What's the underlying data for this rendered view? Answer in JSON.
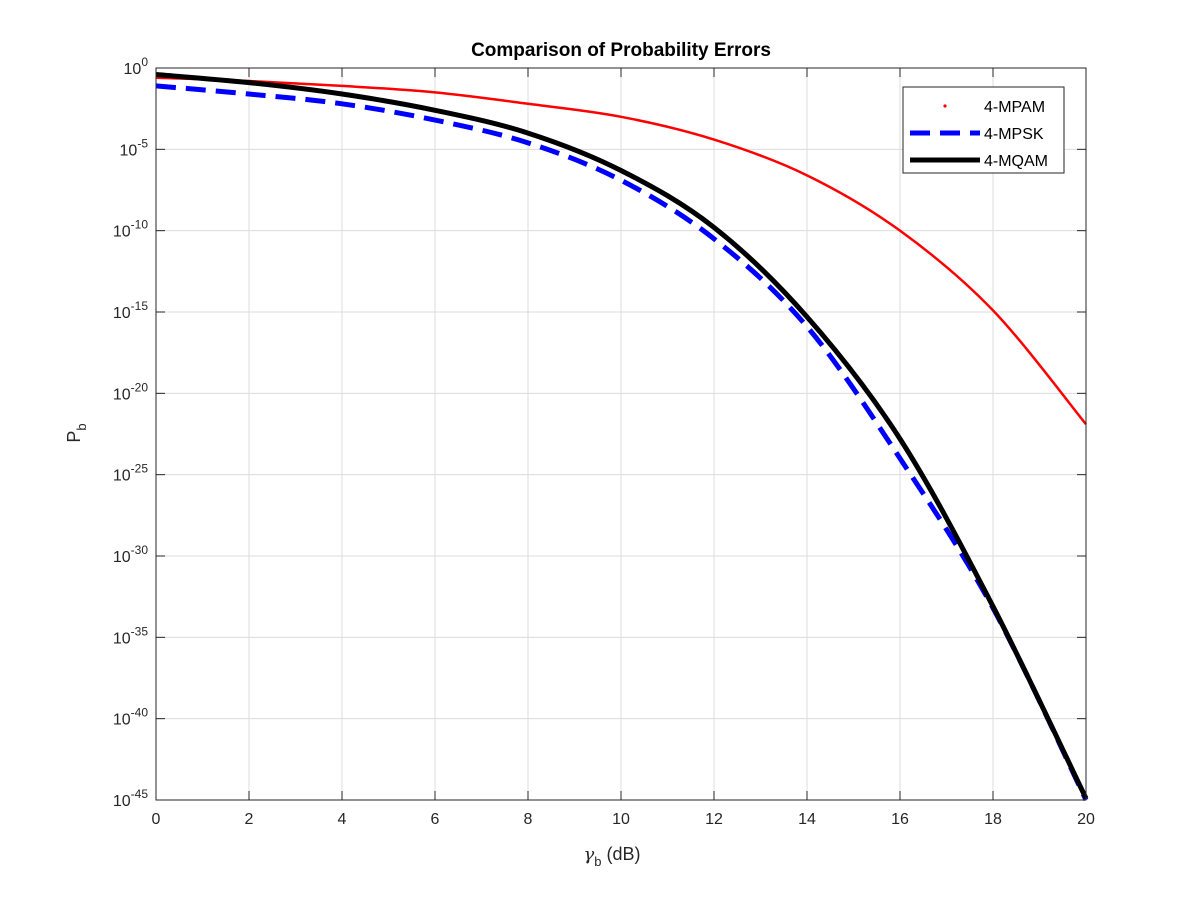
{
  "chart_data": {
    "type": "line",
    "title": "Comparison of Probability Errors",
    "xlabel": {
      "main": "γ",
      "sub": "b",
      "suffix": " (dB)"
    },
    "ylabel": {
      "main": "P",
      "sub": "b"
    },
    "xlim": [
      0,
      20
    ],
    "ylim_exponent": [
      -45,
      0
    ],
    "yscale": "log",
    "grid": true,
    "legend_position": "top-right",
    "x_ticks": [
      "0",
      "2",
      "4",
      "6",
      "8",
      "10",
      "12",
      "14",
      "16",
      "18",
      "20"
    ],
    "y_ticks": [
      {
        "base": "10",
        "exp": "0"
      },
      {
        "base": "10",
        "exp": "-5"
      },
      {
        "base": "10",
        "exp": "-10"
      },
      {
        "base": "10",
        "exp": "-15"
      },
      {
        "base": "10",
        "exp": "-20"
      },
      {
        "base": "10",
        "exp": "-25"
      },
      {
        "base": "10",
        "exp": "-30"
      },
      {
        "base": "10",
        "exp": "-35"
      },
      {
        "base": "10",
        "exp": "-40"
      },
      {
        "base": "10",
        "exp": "-45"
      }
    ],
    "x": [
      0,
      2,
      4,
      6,
      8,
      10,
      12,
      14,
      16,
      18,
      20
    ],
    "series": [
      {
        "name": "4-MPAM",
        "color": "#ff0000",
        "style": "dotted",
        "log10_values": [
          -0.6,
          -0.8,
          -1.1,
          -1.5,
          -2.2,
          -3.0,
          -4.4,
          -6.6,
          -10.0,
          -14.9,
          -21.9
        ]
      },
      {
        "name": "4-MPSK",
        "color": "#0000ff",
        "style": "dashed",
        "log10_values": [
          -1.1,
          -1.6,
          -2.2,
          -3.2,
          -4.6,
          -6.9,
          -10.5,
          -15.9,
          -24.0,
          -33.2,
          -45.0
        ]
      },
      {
        "name": "4-MQAM",
        "color": "#000000",
        "style": "solid",
        "log10_values": [
          -0.4,
          -0.9,
          -1.6,
          -2.6,
          -4.0,
          -6.3,
          -9.8,
          -15.3,
          -22.8,
          -33.1,
          -44.9
        ]
      }
    ]
  }
}
